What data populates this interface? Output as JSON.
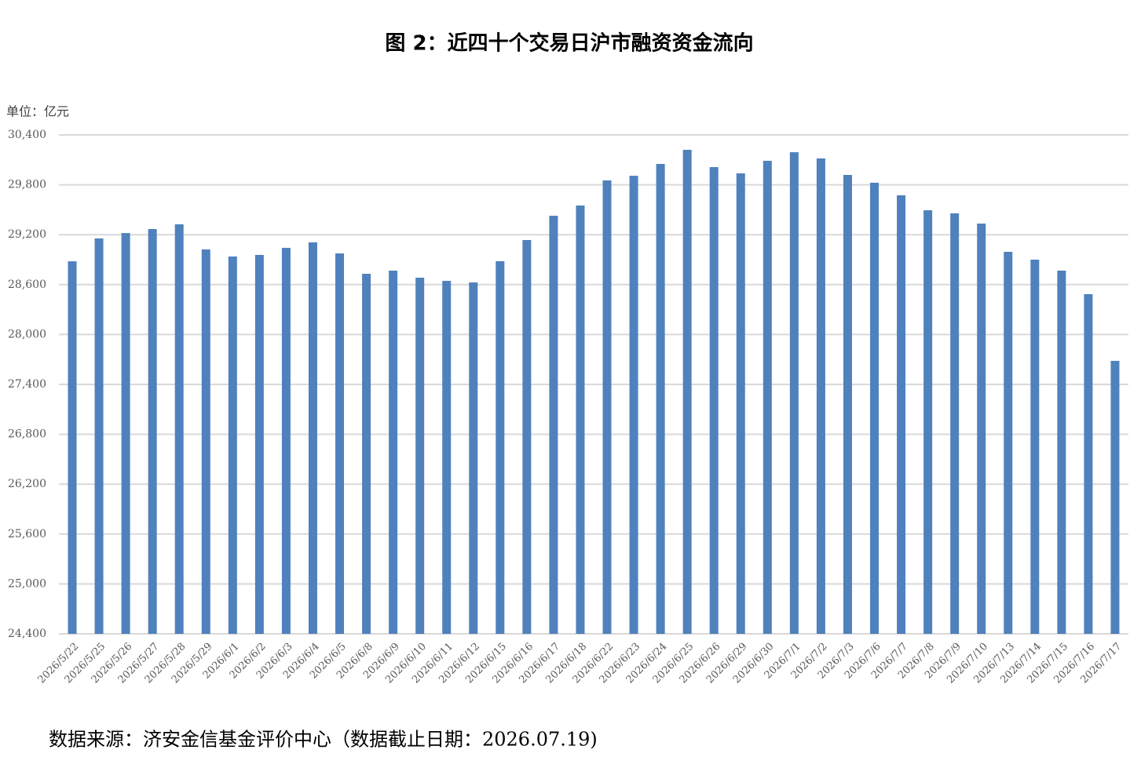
{
  "chart_data": {
    "type": "bar",
    "title": "图 2：近四十个交易日沪市融资资金流向",
    "unit_label": "单位：亿元",
    "source": "数据来源：济安金信基金评价中心（数据截止日期：2026.07.19)",
    "categories": [
      "2026/5/22",
      "2026/5/25",
      "2026/5/26",
      "2026/5/27",
      "2026/5/28",
      "2026/5/29",
      "2026/6/1",
      "2026/6/2",
      "2026/6/3",
      "2026/6/4",
      "2026/6/5",
      "2026/6/8",
      "2026/6/9",
      "2026/6/10",
      "2026/6/11",
      "2026/6/12",
      "2026/6/15",
      "2026/6/16",
      "2026/6/17",
      "2026/6/18",
      "2026/6/22",
      "2026/6/23",
      "2026/6/24",
      "2026/6/25",
      "2026/6/26",
      "2026/6/29",
      "2026/6/30",
      "2026/7/1",
      "2026/7/2",
      "2026/7/3",
      "2026/7/6",
      "2026/7/7",
      "2026/7/8",
      "2026/7/9",
      "2026/7/10",
      "2026/7/13",
      "2026/7/14",
      "2026/7/15",
      "2026/7/16",
      "2026/7/17"
    ],
    "values": [
      28880,
      29155,
      29220,
      29268,
      29325,
      29023,
      28938,
      28957,
      29042,
      29108,
      28975,
      28730,
      28768,
      28683,
      28645,
      28626,
      28881,
      29136,
      29428,
      29551,
      29853,
      29909,
      30051,
      30221,
      30013,
      29938,
      30089,
      30192,
      30117,
      29919,
      29825,
      29674,
      29494,
      29457,
      29334,
      28994,
      28900,
      28768,
      28485,
      27683
    ],
    "color": "#4f81bd",
    "ylim": [
      24400,
      30400
    ],
    "yticks": [
      {
        "value": 24400,
        "label": "24,400"
      },
      {
        "value": 25000,
        "label": "25,000"
      },
      {
        "value": 25600,
        "label": "25,600"
      },
      {
        "value": 26200,
        "label": "26,200"
      },
      {
        "value": 26800,
        "label": "26,800"
      },
      {
        "value": 27400,
        "label": "27,400"
      },
      {
        "value": 28000,
        "label": "28,000"
      },
      {
        "value": 28600,
        "label": "28,600"
      },
      {
        "value": 29200,
        "label": "29,200"
      },
      {
        "value": 29800,
        "label": "29,800"
      },
      {
        "value": 30400,
        "label": "30,400"
      }
    ],
    "grid": true
  }
}
